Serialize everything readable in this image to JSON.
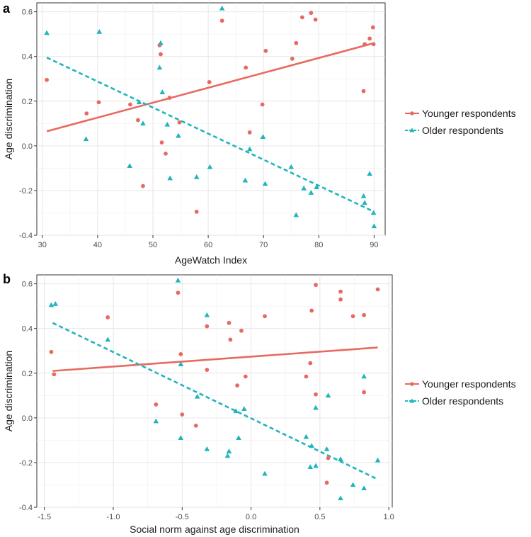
{
  "series_styles": {
    "younger": {
      "name": "Younger respondents",
      "color": "#E8695F",
      "marker": "circle",
      "line": "solid"
    },
    "older": {
      "name": "Older respondents",
      "color": "#21B4BC",
      "marker": "triangle",
      "line": "dashed"
    }
  },
  "chart_data": [
    {
      "type": "scatter",
      "panel_label": "a",
      "title": "",
      "xlabel": "AgeWatch Index",
      "ylabel": "Age discrimination",
      "xlim": [
        29,
        92
      ],
      "ylim": [
        -0.4,
        0.64
      ],
      "xticks": [
        30,
        40,
        50,
        60,
        70,
        80,
        90
      ],
      "xtick_labels": [
        "30",
        "40",
        "50",
        "60",
        "70",
        "80",
        "90"
      ],
      "yticks": [
        -0.4,
        -0.2,
        0.0,
        0.2,
        0.4,
        0.6
      ],
      "ytick_labels": [
        "-0.4",
        "-0.2",
        "0.0",
        "0.2",
        "0.4",
        "0.6"
      ],
      "legend_position": "right",
      "series": [
        {
          "key": "younger",
          "name": "Younger respondents",
          "points": [
            [
              30.8,
              0.295
            ],
            [
              38,
              0.145
            ],
            [
              40.2,
              0.195
            ],
            [
              45.9,
              0.185
            ],
            [
              47.3,
              0.115
            ],
            [
              48.2,
              -0.18
            ],
            [
              51.2,
              0.45
            ],
            [
              51.4,
              0.41
            ],
            [
              51.6,
              0.015
            ],
            [
              52.3,
              -0.035
            ],
            [
              53,
              0.215
            ],
            [
              54.8,
              0.105
            ],
            [
              57.9,
              -0.295
            ],
            [
              60.2,
              0.285
            ],
            [
              62.5,
              0.56
            ],
            [
              66.8,
              0.35
            ],
            [
              67.5,
              0.06
            ],
            [
              69.8,
              0.185
            ],
            [
              70.4,
              0.425
            ],
            [
              75.2,
              0.39
            ],
            [
              75.9,
              0.46
            ],
            [
              77,
              0.575
            ],
            [
              78.6,
              0.595
            ],
            [
              79.4,
              0.565
            ],
            [
              88.1,
              0.245
            ],
            [
              88.3,
              0.455
            ],
            [
              89.2,
              0.48
            ],
            [
              89.8,
              0.53
            ],
            [
              89.9,
              0.455
            ]
          ],
          "trend": {
            "x": [
              30.8,
              90
            ],
            "y": [
              0.065,
              0.46
            ]
          }
        },
        {
          "key": "older",
          "name": "Older respondents",
          "points": [
            [
              30.8,
              0.505
            ],
            [
              37.9,
              0.03
            ],
            [
              40.3,
              0.51
            ],
            [
              45.8,
              -0.09
            ],
            [
              47.5,
              0.195
            ],
            [
              48.2,
              0.1
            ],
            [
              51.2,
              0.35
            ],
            [
              51.4,
              0.46
            ],
            [
              51.7,
              0.24
            ],
            [
              52.6,
              0.095
            ],
            [
              53.1,
              -0.145
            ],
            [
              54.6,
              0.045
            ],
            [
              57.9,
              -0.14
            ],
            [
              60.3,
              -0.095
            ],
            [
              62.5,
              0.615
            ],
            [
              66.7,
              -0.155
            ],
            [
              67.5,
              -0.015
            ],
            [
              69.9,
              0.04
            ],
            [
              70.3,
              -0.17
            ],
            [
              75,
              -0.095
            ],
            [
              75.9,
              -0.31
            ],
            [
              77.3,
              -0.19
            ],
            [
              78.6,
              -0.21
            ],
            [
              79.6,
              -0.185
            ],
            [
              88.1,
              -0.225
            ],
            [
              88.3,
              -0.255
            ],
            [
              89.2,
              -0.125
            ],
            [
              89.9,
              -0.3
            ],
            [
              90,
              -0.36
            ]
          ],
          "trend": {
            "x": [
              30.8,
              90
            ],
            "y": [
              0.395,
              -0.295
            ]
          }
        }
      ]
    },
    {
      "type": "scatter",
      "panel_label": "b",
      "title": "",
      "xlabel": "Social norm against age discrimination",
      "ylabel": "Age discrimination",
      "xlim": [
        -1.555,
        1.025
      ],
      "ylim": [
        -0.4,
        0.64
      ],
      "xticks": [
        -1.5,
        -1.0,
        -0.5,
        0.0,
        0.5,
        1.0
      ],
      "xtick_labels": [
        "-1.5",
        "-1.0",
        "-0.5",
        "0.0",
        "0.5",
        "1.0"
      ],
      "yticks": [
        -0.4,
        -0.2,
        0.0,
        0.2,
        0.4,
        0.6
      ],
      "ytick_labels": [
        "-0.4",
        "-0.2",
        "0.0",
        "0.2",
        "0.4",
        "0.6"
      ],
      "legend_position": "right",
      "series": [
        {
          "key": "younger",
          "name": "Younger respondents",
          "points": [
            [
              -1.45,
              0.295
            ],
            [
              -1.43,
              0.195
            ],
            [
              -1.04,
              0.45
            ],
            [
              -0.69,
              0.06
            ],
            [
              -0.53,
              0.56
            ],
            [
              -0.51,
              0.285
            ],
            [
              -0.5,
              0.015
            ],
            [
              -0.4,
              -0.035
            ],
            [
              -0.32,
              0.41
            ],
            [
              -0.32,
              0.215
            ],
            [
              -0.16,
              0.425
            ],
            [
              -0.15,
              0.35
            ],
            [
              -0.1,
              0.145
            ],
            [
              -0.07,
              0.39
            ],
            [
              -0.04,
              0.185
            ],
            [
              0.1,
              0.455
            ],
            [
              0.4,
              0.185
            ],
            [
              0.43,
              0.245
            ],
            [
              0.44,
              0.48
            ],
            [
              0.47,
              0.105
            ],
            [
              0.47,
              0.595
            ],
            [
              0.55,
              -0.29
            ],
            [
              0.56,
              -0.18
            ],
            [
              0.65,
              0.53
            ],
            [
              0.65,
              0.565
            ],
            [
              0.74,
              0.455
            ],
            [
              0.82,
              0.46
            ],
            [
              0.82,
              0.115
            ],
            [
              0.92,
              0.575
            ]
          ],
          "trend": {
            "x": [
              -1.44,
              0.92
            ],
            "y": [
              0.21,
              0.315
            ]
          }
        },
        {
          "key": "older",
          "name": "Older respondents",
          "points": [
            [
              -1.45,
              0.505
            ],
            [
              -1.42,
              0.51
            ],
            [
              -1.04,
              0.35
            ],
            [
              -0.69,
              -0.015
            ],
            [
              -0.53,
              0.615
            ],
            [
              -0.51,
              0.24
            ],
            [
              -0.51,
              -0.09
            ],
            [
              -0.39,
              0.095
            ],
            [
              -0.32,
              0.46
            ],
            [
              -0.32,
              -0.14
            ],
            [
              -0.17,
              -0.17
            ],
            [
              -0.16,
              -0.15
            ],
            [
              -0.11,
              0.03
            ],
            [
              -0.09,
              -0.09
            ],
            [
              -0.05,
              0.04
            ],
            [
              0.1,
              -0.25
            ],
            [
              0.4,
              -0.085
            ],
            [
              0.43,
              -0.22
            ],
            [
              0.44,
              -0.125
            ],
            [
              0.47,
              -0.215
            ],
            [
              0.47,
              0.045
            ],
            [
              0.55,
              -0.14
            ],
            [
              0.56,
              0.1
            ],
            [
              0.65,
              -0.185
            ],
            [
              0.65,
              -0.36
            ],
            [
              0.74,
              -0.3
            ],
            [
              0.82,
              0.185
            ],
            [
              0.82,
              -0.315
            ],
            [
              0.92,
              -0.19
            ]
          ],
          "trend": {
            "x": [
              -1.44,
              0.92
            ],
            "y": [
              0.425,
              -0.275
            ]
          }
        }
      ]
    }
  ]
}
